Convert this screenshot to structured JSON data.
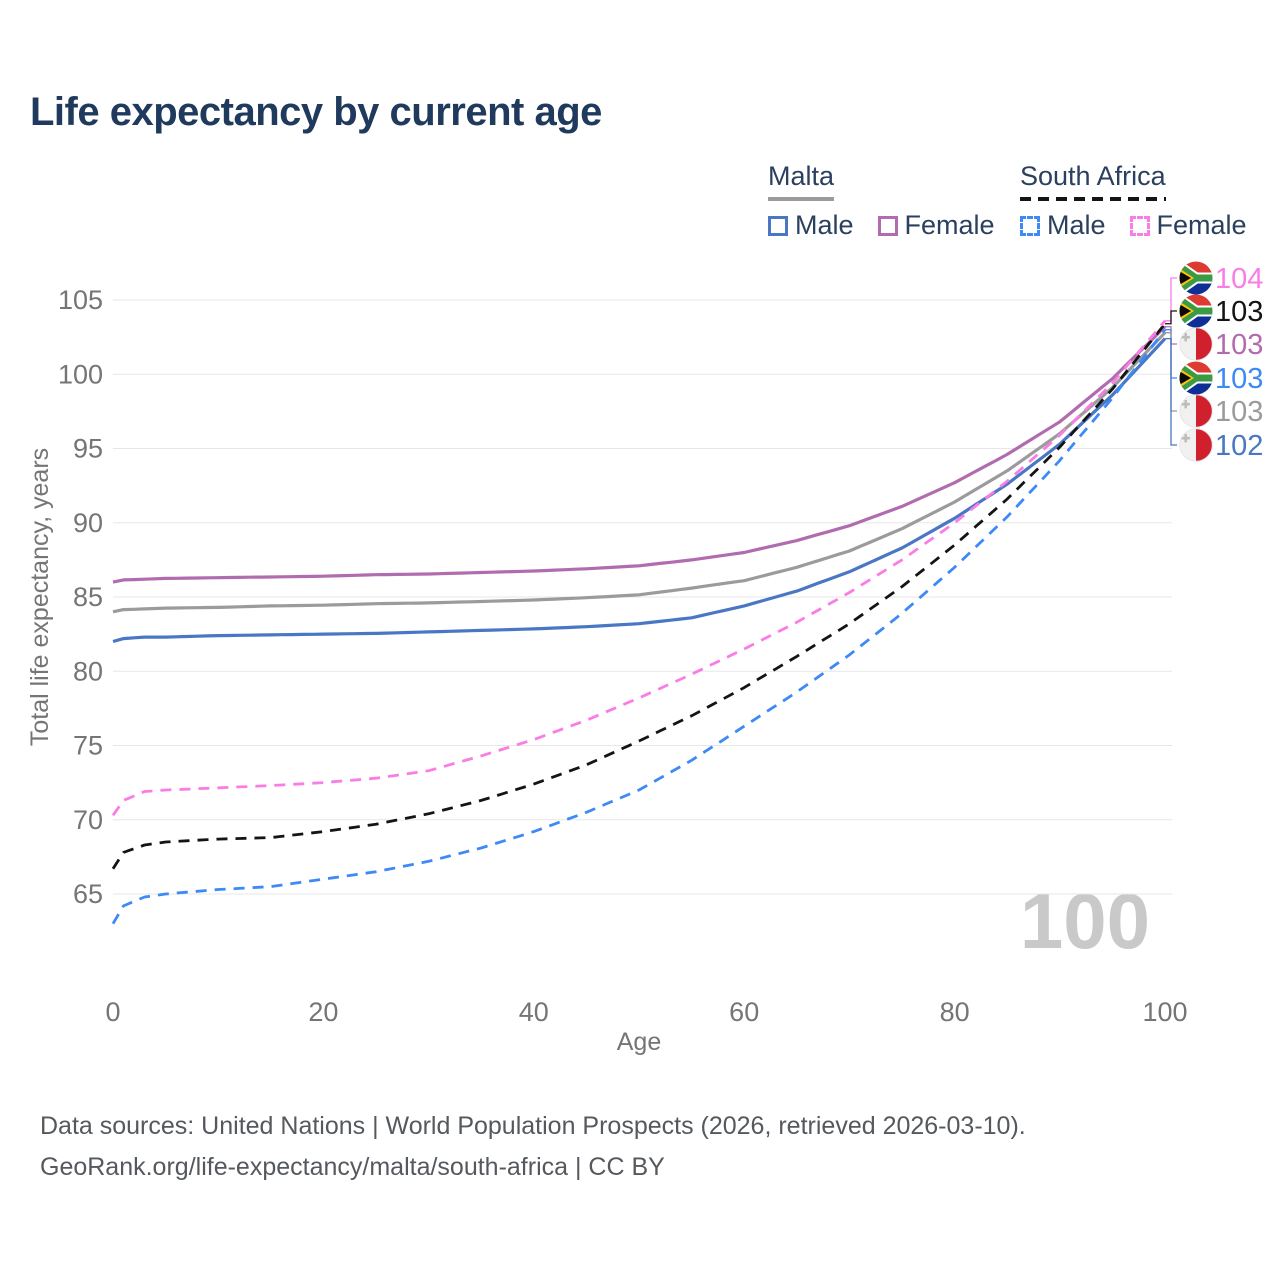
{
  "page": {
    "title": "Life expectancy by current age"
  },
  "legend": {
    "groups": [
      {
        "id": "malta",
        "label": "Malta",
        "line_style": "solid",
        "line_color": "#9b9b9b",
        "items": [
          {
            "id": "malta-male",
            "label": "Male",
            "color": "#4a77c4",
            "dashed": false
          },
          {
            "id": "malta-female",
            "label": "Female",
            "color": "#b06cae",
            "dashed": false
          }
        ]
      },
      {
        "id": "south-africa",
        "label": "South Africa",
        "line_style": "dashed",
        "line_color": "#141414",
        "items": [
          {
            "id": "sa-male",
            "label": "Male",
            "color": "#3d89f6",
            "dashed": true
          },
          {
            "id": "sa-female",
            "label": "Female",
            "color": "#fa7de6",
            "dashed": true
          }
        ]
      }
    ]
  },
  "chart_data": {
    "type": "line",
    "title": "Life expectancy by current age",
    "xlabel": "Age",
    "ylabel": "Total life expectancy, years",
    "xlim": [
      0,
      100
    ],
    "ylim": [
      63,
      105.5
    ],
    "x_ticks": [
      0,
      20,
      40,
      60,
      80,
      100
    ],
    "y_ticks": [
      65,
      70,
      75,
      80,
      85,
      90,
      95,
      100,
      105
    ],
    "grid": "horizontal",
    "legend_position": "top-right",
    "watermark": "100",
    "x": [
      0,
      1,
      3,
      5,
      10,
      15,
      20,
      25,
      30,
      35,
      40,
      45,
      50,
      55,
      60,
      65,
      70,
      75,
      80,
      85,
      90,
      95,
      100
    ],
    "series": [
      {
        "id": "malta-male",
        "name": "Malta Male",
        "color": "#4a77c4",
        "dashed": false,
        "flag": "malta",
        "end_label": "102",
        "values": [
          82.0,
          82.2,
          82.3,
          82.3,
          82.4,
          82.45,
          82.5,
          82.55,
          82.65,
          82.75,
          82.85,
          83.0,
          83.2,
          83.6,
          84.4,
          85.4,
          86.7,
          88.3,
          90.3,
          92.6,
          95.3,
          98.6,
          102.4
        ]
      },
      {
        "id": "malta-all",
        "name": "Malta Both sexes",
        "color": "#9b9b9b",
        "dashed": false,
        "flag": "malta",
        "end_label": "103",
        "values": [
          84.0,
          84.15,
          84.2,
          84.25,
          84.3,
          84.4,
          84.45,
          84.55,
          84.6,
          84.7,
          84.8,
          84.95,
          85.15,
          85.6,
          86.1,
          87.0,
          88.1,
          89.6,
          91.4,
          93.5,
          96.0,
          99.1,
          102.8
        ]
      },
      {
        "id": "malta-female",
        "name": "Malta Female",
        "color": "#b06cae",
        "dashed": false,
        "flag": "malta",
        "end_label": "103",
        "values": [
          86.0,
          86.15,
          86.2,
          86.25,
          86.3,
          86.35,
          86.4,
          86.5,
          86.55,
          86.65,
          86.75,
          86.9,
          87.1,
          87.5,
          88.0,
          88.8,
          89.8,
          91.1,
          92.7,
          94.6,
          96.8,
          99.7,
          103.2
        ]
      },
      {
        "id": "sa-male",
        "name": "South Africa Male",
        "color": "#3d89f6",
        "dashed": true,
        "flag": "south-africa",
        "end_label": "103",
        "values": [
          63.0,
          64.2,
          64.8,
          65.0,
          65.3,
          65.5,
          66.0,
          66.5,
          67.2,
          68.1,
          69.2,
          70.5,
          72.0,
          74.0,
          76.3,
          78.6,
          81.1,
          83.9,
          87.0,
          90.4,
          94.2,
          98.4,
          103.0
        ]
      },
      {
        "id": "sa-all",
        "name": "South Africa Both sexes",
        "color": "#141414",
        "dashed": true,
        "flag": "south-africa",
        "end_label": "103",
        "values": [
          66.7,
          67.8,
          68.3,
          68.5,
          68.7,
          68.8,
          69.2,
          69.7,
          70.4,
          71.3,
          72.4,
          73.7,
          75.3,
          77.0,
          78.9,
          81.0,
          83.2,
          85.7,
          88.5,
          91.6,
          95.1,
          99.0,
          103.4
        ]
      },
      {
        "id": "sa-female",
        "name": "South Africa Female",
        "color": "#fa7de6",
        "dashed": true,
        "flag": "south-africa",
        "end_label": "104",
        "values": [
          70.3,
          71.3,
          71.9,
          72.0,
          72.15,
          72.3,
          72.5,
          72.8,
          73.3,
          74.3,
          75.4,
          76.7,
          78.2,
          79.8,
          81.5,
          83.3,
          85.3,
          87.5,
          90.0,
          92.8,
          95.9,
          99.4,
          103.6
        ]
      }
    ],
    "end_labels_top_to_bottom": [
      {
        "series": "sa-female",
        "text": "104"
      },
      {
        "series": "sa-all",
        "text": "103"
      },
      {
        "series": "malta-female",
        "text": "103"
      },
      {
        "series": "sa-male",
        "text": "103"
      },
      {
        "series": "malta-all",
        "text": "103"
      },
      {
        "series": "malta-male",
        "text": "102"
      }
    ]
  },
  "colors": {
    "title_text": "#1f3a5c",
    "legend_text": "#2b405f",
    "axis_text": "#757575",
    "gridline": "#e7e7e7",
    "watermark": "#c9c9c9",
    "footer_text": "#55595e"
  },
  "footer": {
    "line1": "Data sources: United Nations | World Population Prospects (2026, retrieved 2026-03-10).",
    "line2": "GeoRank.org/life-expectancy/malta/south-africa | CC BY"
  }
}
